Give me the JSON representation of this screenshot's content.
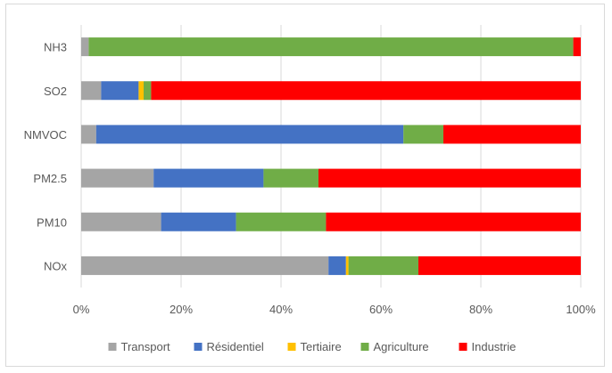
{
  "chart_data": {
    "type": "bar",
    "orientation": "horizontal",
    "stacked": "percent",
    "categories": [
      "NH3",
      "SO2",
      "NMVOC",
      "PM2.5",
      "PM10",
      "NOx"
    ],
    "series": [
      {
        "name": "Transport",
        "color": "#a5a5a5",
        "values": [
          1.5,
          4,
          3,
          14.5,
          16,
          49.5
        ]
      },
      {
        "name": "Résidentiel",
        "color": "#4472c4",
        "values": [
          0,
          7.5,
          61.5,
          22,
          15,
          3.5
        ]
      },
      {
        "name": "Tertiaire",
        "color": "#ffc000",
        "values": [
          0,
          1,
          0,
          0,
          0,
          0.5
        ]
      },
      {
        "name": "Agriculture",
        "color": "#70ad47",
        "values": [
          97,
          1.5,
          8,
          11,
          18,
          14
        ]
      },
      {
        "name": "Industrie",
        "color": "#ff0000",
        "values": [
          1.5,
          86,
          27.5,
          52.5,
          51,
          32.5
        ]
      }
    ],
    "xticks": [
      "0%",
      "20%",
      "40%",
      "60%",
      "80%",
      "100%"
    ],
    "xlim": [
      0,
      100
    ],
    "grid": true,
    "legend": "bottom"
  }
}
